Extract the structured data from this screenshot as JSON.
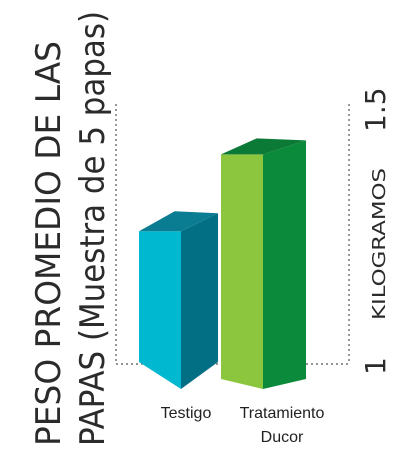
{
  "chart_data": {
    "type": "bar",
    "title_line1": "PESO PROMEDIO DE LAS",
    "title_line2": "PAPAS (Muestra de 5 papas)",
    "ylabel": "KILOGRAMOS",
    "ylim": [
      1,
      1.5
    ],
    "yticks": [
      "1",
      "1.5"
    ],
    "categories": [
      {
        "line1": "Testigo",
        "line2": ""
      },
      {
        "line1": "Tratamiento",
        "line2": "Ducor"
      }
    ],
    "values": [
      1.29,
      1.43
    ],
    "colors": [
      {
        "front": "#00b8d0",
        "side": "#036f85",
        "top": "#0b7d92"
      },
      {
        "front": "#8cc63f",
        "side": "#0a8a3a",
        "top": "#0b7a36"
      }
    ],
    "bar_style": "3d"
  }
}
